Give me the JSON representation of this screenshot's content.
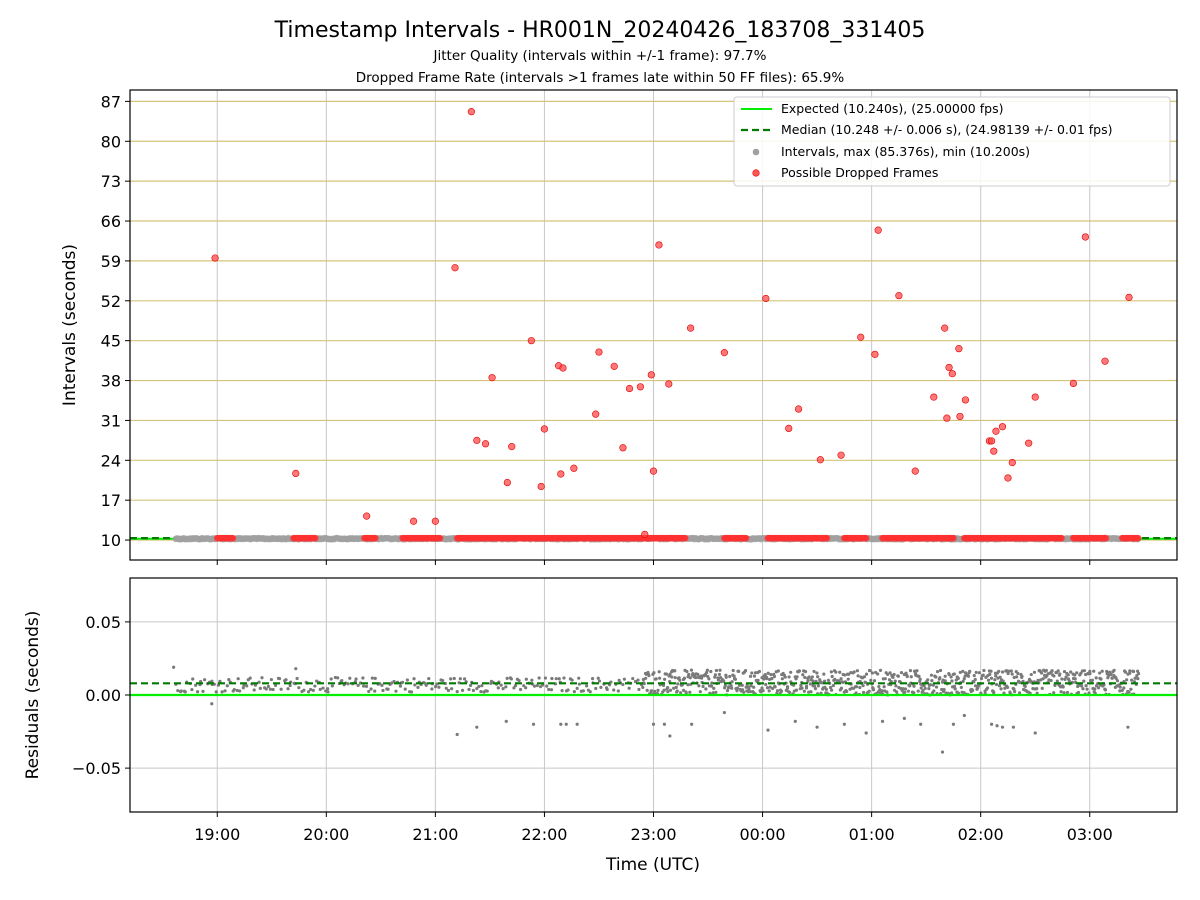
{
  "chart_data": [
    {
      "type": "scatter",
      "title": "Timestamp Intervals - HR001N_20240426_183708_331405",
      "subtitle_lines": [
        "Jitter Quality (intervals within +/-1 frame): 97.7%",
        "Dropped Frame Rate (intervals >1 frames late within 50 FF files): 65.9%"
      ],
      "xlabel": "",
      "ylabel": "Intervals (seconds)",
      "x_ticks": [
        "19:00",
        "20:00",
        "21:00",
        "22:00",
        "23:00",
        "00:00",
        "01:00",
        "02:00",
        "03:00"
      ],
      "y_ticks": [
        10,
        17,
        24,
        31,
        38,
        45,
        52,
        59,
        66,
        73,
        80,
        87
      ],
      "xlim_hours_after_1900": [
        -0.8,
        8.8
      ],
      "ylim": [
        6.5,
        89
      ],
      "grid": {
        "x": true,
        "y": true,
        "y_color": "#d8c67a"
      },
      "legend_position": "top-right",
      "legend": [
        "Expected (10.240s), (25.00000 fps)",
        "Median (10.248 +/- 0.006 s), (24.98139 +/- 0.01 fps)",
        "Intervals, max (85.376s), min (10.200s)",
        "Possible Dropped Frames"
      ],
      "expected_value": 10.24,
      "median_value": 10.248,
      "interval_points_range_hours_after_1900": [
        -0.38,
        8.45
      ],
      "interval_value_approx": 10.24,
      "dropped_frames_baseline_segments": [
        [
          0.0,
          0.15
        ],
        [
          0.7,
          0.9
        ],
        [
          1.35,
          1.45
        ],
        [
          1.7,
          2.05
        ],
        [
          2.2,
          4.3
        ],
        [
          4.65,
          4.85
        ],
        [
          5.05,
          5.6
        ],
        [
          5.75,
          5.95
        ],
        [
          6.1,
          6.75
        ],
        [
          6.85,
          7.75
        ],
        [
          7.85,
          8.15
        ],
        [
          8.3,
          8.45
        ]
      ],
      "dropped_frames": [
        [
          -0.02,
          59.5
        ],
        [
          0.72,
          21.7
        ],
        [
          1.37,
          14.2
        ],
        [
          1.8,
          13.3
        ],
        [
          2.0,
          13.3
        ],
        [
          2.18,
          57.8
        ],
        [
          2.33,
          85.2
        ],
        [
          2.38,
          27.5
        ],
        [
          2.46,
          26.9
        ],
        [
          2.52,
          38.5
        ],
        [
          2.66,
          20.1
        ],
        [
          2.7,
          26.4
        ],
        [
          2.88,
          45.0
        ],
        [
          2.97,
          19.4
        ],
        [
          3.0,
          29.5
        ],
        [
          3.13,
          40.6
        ],
        [
          3.15,
          21.6
        ],
        [
          3.17,
          40.2
        ],
        [
          3.27,
          22.6
        ],
        [
          3.47,
          32.1
        ],
        [
          3.5,
          43.0
        ],
        [
          3.64,
          40.5
        ],
        [
          3.72,
          26.2
        ],
        [
          3.78,
          36.6
        ],
        [
          3.88,
          36.9
        ],
        [
          3.92,
          11.0
        ],
        [
          3.98,
          39.0
        ],
        [
          4.0,
          22.1
        ],
        [
          4.05,
          61.8
        ],
        [
          4.14,
          37.4
        ],
        [
          4.34,
          47.2
        ],
        [
          4.65,
          42.9
        ],
        [
          5.03,
          52.4
        ],
        [
          5.24,
          29.6
        ],
        [
          5.33,
          33.0
        ],
        [
          5.53,
          24.1
        ],
        [
          5.72,
          24.9
        ],
        [
          5.9,
          45.6
        ],
        [
          6.03,
          42.6
        ],
        [
          6.06,
          64.4
        ],
        [
          6.25,
          52.9
        ],
        [
          6.4,
          22.1
        ],
        [
          6.57,
          35.1
        ],
        [
          6.67,
          47.2
        ],
        [
          6.69,
          31.4
        ],
        [
          6.71,
          40.3
        ],
        [
          6.74,
          39.2
        ],
        [
          6.8,
          43.6
        ],
        [
          6.81,
          31.7
        ],
        [
          6.86,
          34.6
        ],
        [
          7.08,
          27.4
        ],
        [
          7.1,
          27.4
        ],
        [
          7.12,
          25.6
        ],
        [
          7.14,
          29.1
        ],
        [
          7.2,
          29.9
        ],
        [
          7.25,
          20.9
        ],
        [
          7.29,
          23.6
        ],
        [
          7.44,
          27.0
        ],
        [
          7.5,
          35.1
        ],
        [
          7.85,
          37.5
        ],
        [
          7.96,
          63.2
        ],
        [
          8.14,
          41.4
        ],
        [
          8.36,
          52.6
        ]
      ]
    },
    {
      "type": "scatter",
      "title": "",
      "xlabel": "Time (UTC)",
      "ylabel": "Residuals (seconds)",
      "y_ticks": [
        0.05,
        0.0,
        -0.05
      ],
      "y_tick_labels": [
        "0.05",
        "0.00",
        "−0.05"
      ],
      "ylim": [
        -0.08,
        0.08
      ],
      "grid": {
        "x": true,
        "y": true
      },
      "expected_residual": 0.0,
      "median_residual": 0.008,
      "residual_noise_bands": [
        {
          "x_range": [
            -0.38,
            3.9
          ],
          "y_range": [
            0.002,
            0.012
          ]
        },
        {
          "x_range": [
            3.9,
            8.45
          ],
          "y_range": [
            0.0,
            0.017
          ]
        }
      ],
      "residual_outliers": [
        [
          -0.4,
          0.019
        ],
        [
          -0.05,
          -0.006
        ],
        [
          0.72,
          0.018
        ],
        [
          2.2,
          -0.027
        ],
        [
          2.38,
          -0.022
        ],
        [
          2.65,
          -0.018
        ],
        [
          2.9,
          -0.02
        ],
        [
          3.15,
          -0.02
        ],
        [
          3.2,
          -0.02
        ],
        [
          3.3,
          -0.02
        ],
        [
          4.0,
          -0.02
        ],
        [
          4.1,
          -0.02
        ],
        [
          4.15,
          -0.028
        ],
        [
          4.35,
          -0.02
        ],
        [
          4.65,
          -0.012
        ],
        [
          5.05,
          -0.024
        ],
        [
          5.3,
          -0.018
        ],
        [
          5.5,
          -0.022
        ],
        [
          5.75,
          -0.02
        ],
        [
          5.95,
          -0.026
        ],
        [
          6.1,
          -0.018
        ],
        [
          6.3,
          -0.016
        ],
        [
          6.45,
          -0.02
        ],
        [
          6.65,
          -0.039
        ],
        [
          6.75,
          -0.02
        ],
        [
          6.85,
          -0.014
        ],
        [
          7.1,
          -0.02
        ],
        [
          7.15,
          -0.021
        ],
        [
          7.2,
          -0.022
        ],
        [
          7.3,
          -0.022
        ],
        [
          7.5,
          -0.026
        ],
        [
          8.35,
          -0.022
        ]
      ]
    }
  ],
  "colors": {
    "expected": "#00ee00",
    "median": "#007a00",
    "intervals": "#a0a0a0",
    "dropped": "#ff0000",
    "residuals": "#7a7a7a",
    "y_grid_top": "#d6c47a",
    "grid": "#c8c8c8"
  }
}
